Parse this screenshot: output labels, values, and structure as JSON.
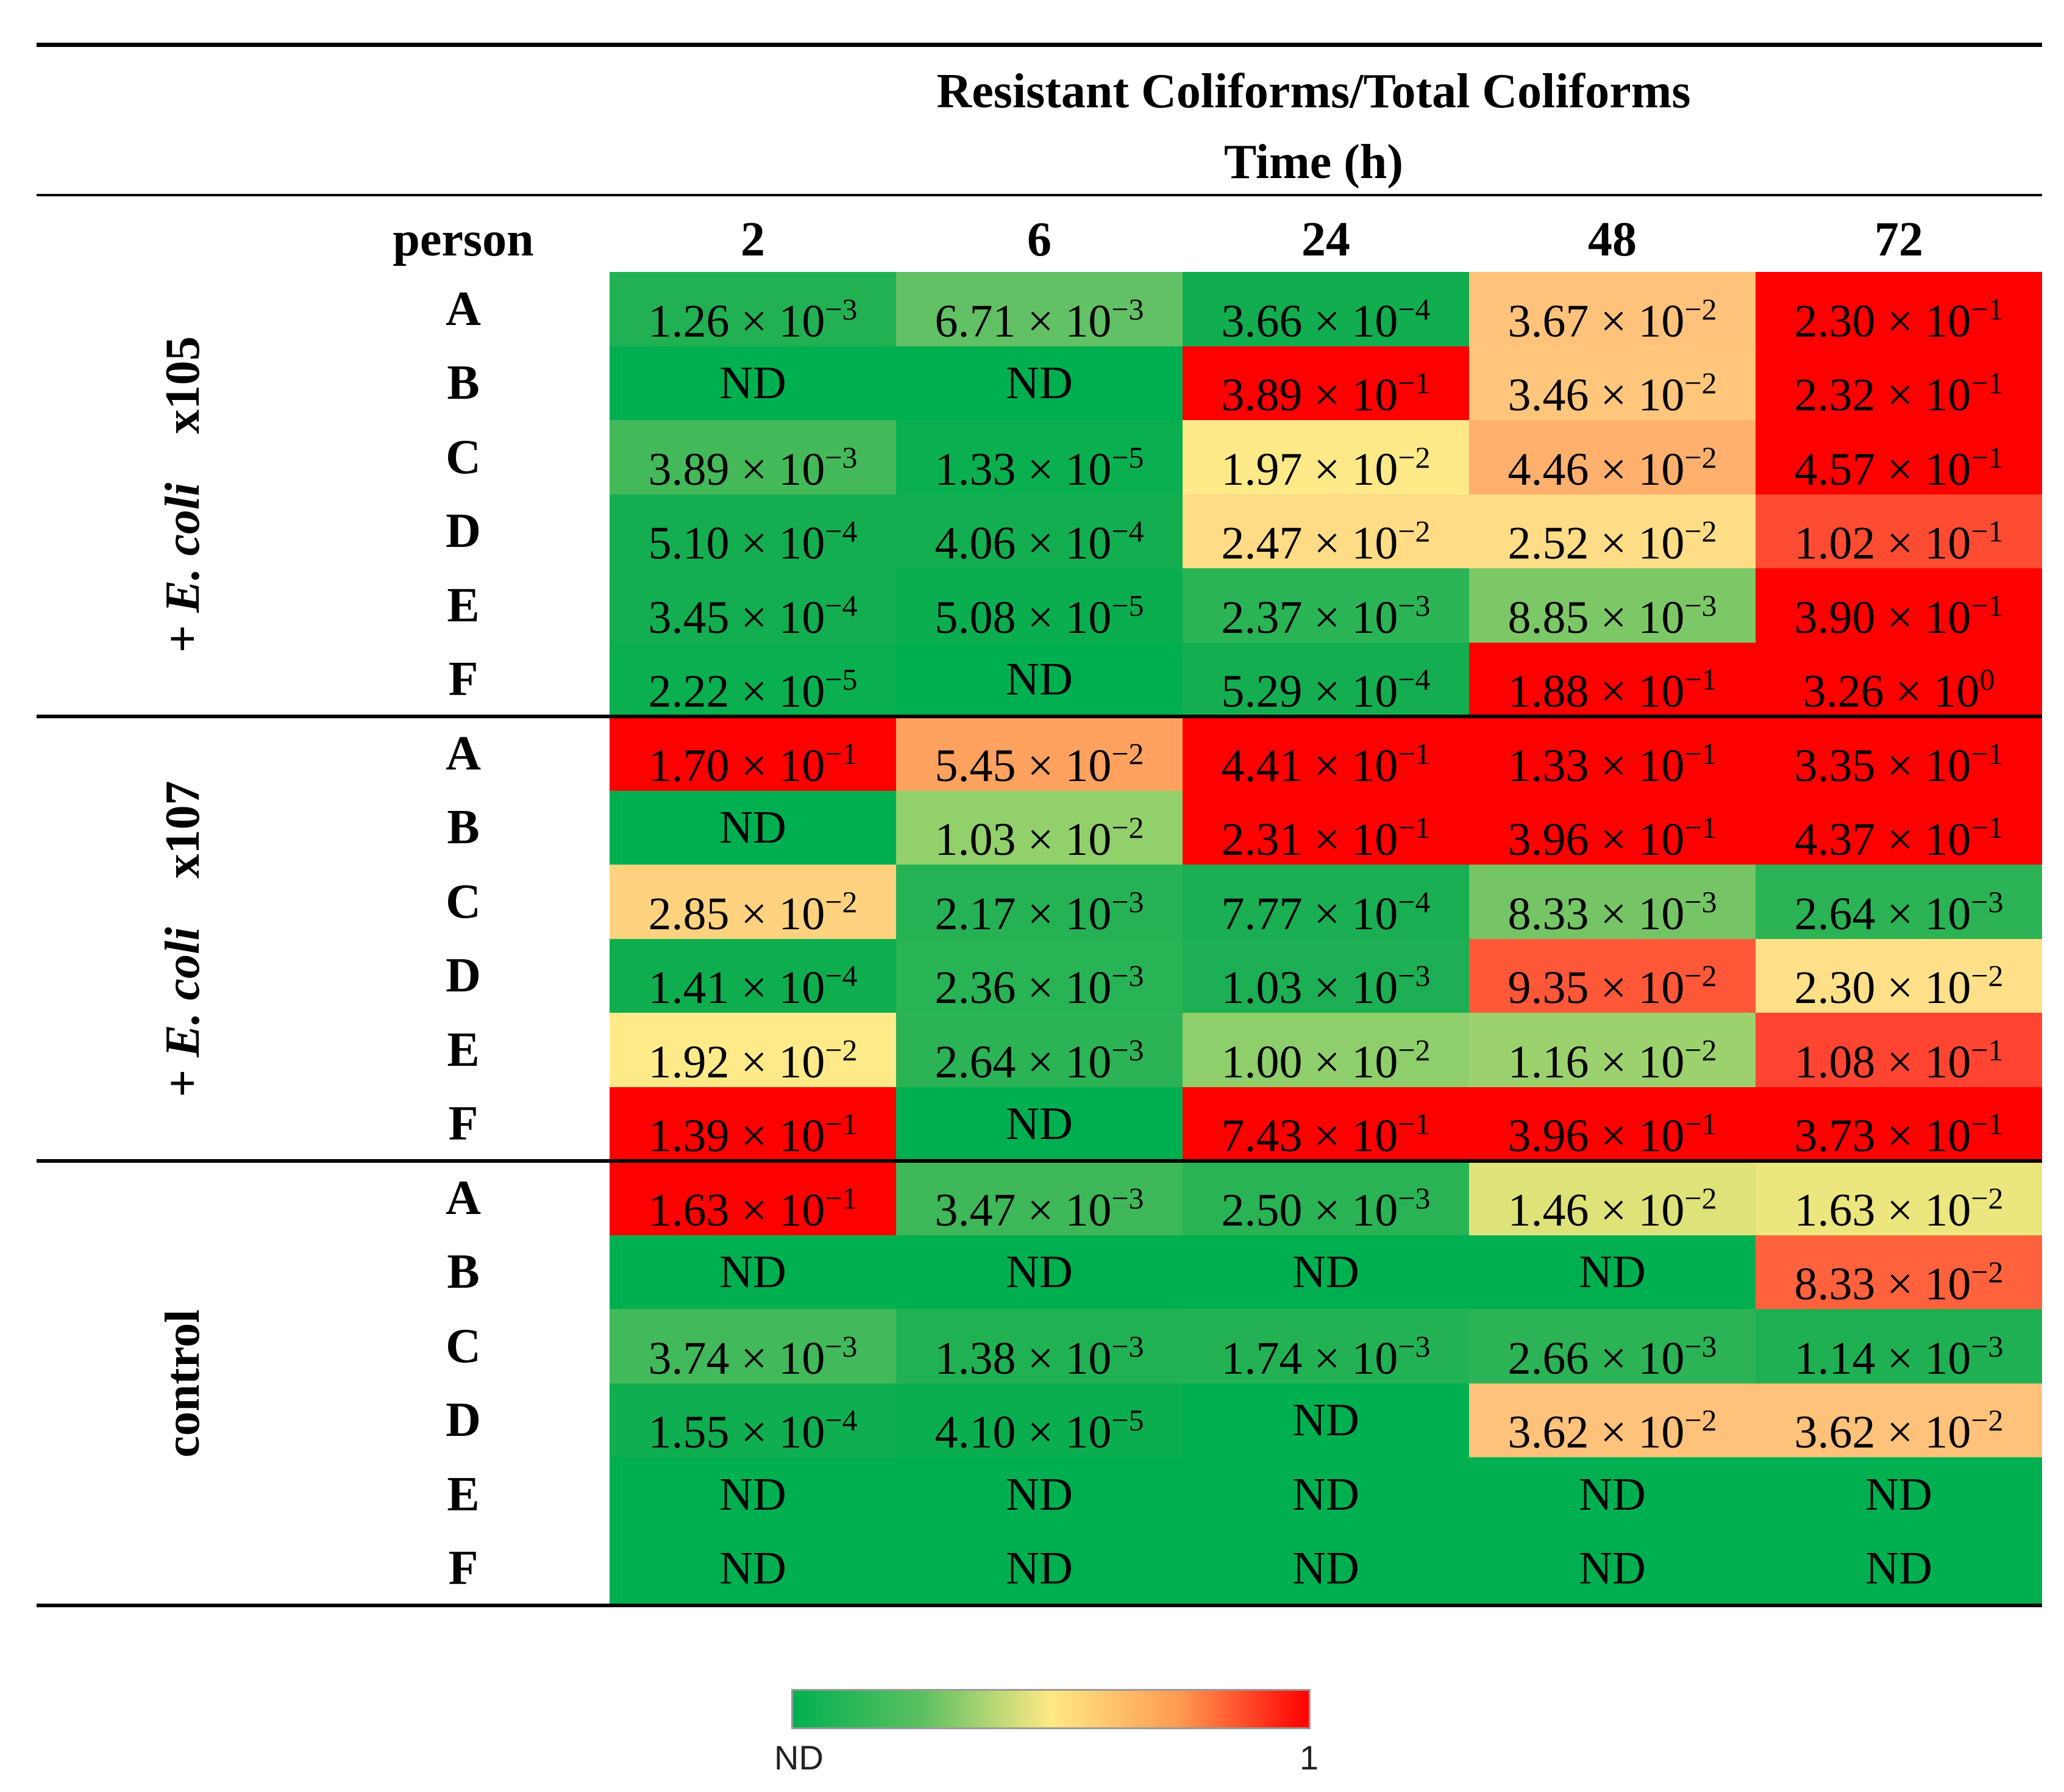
{
  "chart_data": {
    "type": "heatmap",
    "title": "Resistant Coliforms/Total Coliforms",
    "subtitle": "Time (h)",
    "row_header": "person",
    "columns": [
      "2",
      "6",
      "24",
      "48",
      "72"
    ],
    "groups": [
      {
        "label_prefix": "+ ",
        "label_italic": "E. coli",
        "label_suffix": "x105",
        "rows": [
          {
            "person": "A",
            "cells": [
              {
                "text": "1.26 × 10",
                "exp": "−3",
                "value": 0.00126,
                "color": "#21b153"
              },
              {
                "text": "6.71 × 10",
                "exp": "−3",
                "value": 0.00671,
                "color": "#62c165"
              },
              {
                "text": "3.66 × 10",
                "exp": "−4",
                "value": 0.000366,
                "color": "#11ad4f"
              },
              {
                "text": "3.67 × 10",
                "exp": "−2",
                "value": 0.0367,
                "color": "#ffc27a"
              },
              {
                "text": "2.30 × 10",
                "exp": "−1",
                "value": 0.23,
                "color": "#ff0000"
              }
            ]
          },
          {
            "person": "B",
            "cells": [
              {
                "text": "ND",
                "exp": "",
                "value": 0,
                "color": "#00b050"
              },
              {
                "text": "ND",
                "exp": "",
                "value": 0,
                "color": "#00b050"
              },
              {
                "text": "3.89 × 10",
                "exp": "−1",
                "value": 0.389,
                "color": "#ff0000"
              },
              {
                "text": "3.46 × 10",
                "exp": "−2",
                "value": 0.0346,
                "color": "#ffc67c"
              },
              {
                "text": "2.32 × 10",
                "exp": "−1",
                "value": 0.232,
                "color": "#ff0000"
              }
            ]
          },
          {
            "person": "C",
            "cells": [
              {
                "text": "3.89 × 10",
                "exp": "−3",
                "value": 0.00389,
                "color": "#44b95a"
              },
              {
                "text": "1.33 × 10",
                "exp": "−5",
                "value": 1.33e-05,
                "color": "#0ab04f"
              },
              {
                "text": "1.97 × 10",
                "exp": "−2",
                "value": 0.0197,
                "color": "#fee989"
              },
              {
                "text": "4.46 × 10",
                "exp": "−2",
                "value": 0.0446,
                "color": "#ffb06c"
              },
              {
                "text": "4.57 × 10",
                "exp": "−1",
                "value": 0.457,
                "color": "#ff0000"
              }
            ]
          },
          {
            "person": "D",
            "cells": [
              {
                "text": "5.10 × 10",
                "exp": "−4",
                "value": 0.00051,
                "color": "#14ae51"
              },
              {
                "text": "4.06 × 10",
                "exp": "−4",
                "value": 0.000406,
                "color": "#13ae50"
              },
              {
                "text": "2.47 × 10",
                "exp": "−2",
                "value": 0.0247,
                "color": "#ffdc85"
              },
              {
                "text": "2.52 × 10",
                "exp": "−2",
                "value": 0.0252,
                "color": "#ffdc86"
              },
              {
                "text": "1.02 × 10",
                "exp": "−1",
                "value": 0.102,
                "color": "#fe4c33"
              }
            ]
          },
          {
            "person": "E",
            "cells": [
              {
                "text": "3.45 × 10",
                "exp": "−4",
                "value": 0.000345,
                "color": "#12ae50"
              },
              {
                "text": "5.08 × 10",
                "exp": "−5",
                "value": 5.08e-05,
                "color": "#0bae4f"
              },
              {
                "text": "2.37 × 10",
                "exp": "−3",
                "value": 0.00237,
                "color": "#2ab456"
              },
              {
                "text": "8.85 × 10",
                "exp": "−3",
                "value": 0.00885,
                "color": "#7dc866"
              },
              {
                "text": "3.90 × 10",
                "exp": "−1",
                "value": 0.39,
                "color": "#ff0000"
              }
            ]
          },
          {
            "person": "F",
            "cells": [
              {
                "text": "2.22 × 10",
                "exp": "−5",
                "value": 2.22e-05,
                "color": "#0ab04f"
              },
              {
                "text": "ND",
                "exp": "",
                "value": 0,
                "color": "#00b050"
              },
              {
                "text": "5.29 × 10",
                "exp": "−4",
                "value": 0.000529,
                "color": "#14ae51"
              },
              {
                "text": "1.88 × 10",
                "exp": "−1",
                "value": 0.188,
                "color": "#ff0000"
              },
              {
                "text": "3.26 × 10",
                "exp": "0",
                "value": 3.26,
                "color": "#ff0000"
              }
            ]
          }
        ]
      },
      {
        "label_prefix": "+ ",
        "label_italic": "E. coli",
        "label_suffix": "x107",
        "rows": [
          {
            "person": "A",
            "cells": [
              {
                "text": "1.70 × 10",
                "exp": "−1",
                "value": 0.17,
                "color": "#ff0000"
              },
              {
                "text": "5.45 × 10",
                "exp": "−2",
                "value": 0.0545,
                "color": "#ffa25f"
              },
              {
                "text": "4.41 × 10",
                "exp": "−1",
                "value": 0.441,
                "color": "#ff0000"
              },
              {
                "text": "1.33 × 10",
                "exp": "−1",
                "value": 0.133,
                "color": "#ff0000"
              },
              {
                "text": "3.35 × 10",
                "exp": "−1",
                "value": 0.335,
                "color": "#ff0000"
              }
            ]
          },
          {
            "person": "B",
            "cells": [
              {
                "text": "ND",
                "exp": "",
                "value": 0,
                "color": "#00b050"
              },
              {
                "text": "1.03 × 10",
                "exp": "−2",
                "value": 0.0103,
                "color": "#92d06b"
              },
              {
                "text": "2.31 × 10",
                "exp": "−1",
                "value": 0.231,
                "color": "#ff0000"
              },
              {
                "text": "3.96 × 10",
                "exp": "−1",
                "value": 0.396,
                "color": "#ff0000"
              },
              {
                "text": "4.37 × 10",
                "exp": "−1",
                "value": 0.437,
                "color": "#ff0000"
              }
            ]
          },
          {
            "person": "C",
            "cells": [
              {
                "text": "2.85 × 10",
                "exp": "−2",
                "value": 0.0285,
                "color": "#ffd27f"
              },
              {
                "text": "2.17 × 10",
                "exp": "−3",
                "value": 0.00217,
                "color": "#25b254"
              },
              {
                "text": "7.77 × 10",
                "exp": "−4",
                "value": 0.000777,
                "color": "#1aaf52"
              },
              {
                "text": "8.33 × 10",
                "exp": "−3",
                "value": 0.00833,
                "color": "#75c566"
              },
              {
                "text": "2.64 × 10",
                "exp": "−3",
                "value": 0.00264,
                "color": "#2bb355"
              }
            ]
          },
          {
            "person": "D",
            "cells": [
              {
                "text": "1.41 × 10",
                "exp": "−4",
                "value": 0.000141,
                "color": "#0eae4f"
              },
              {
                "text": "2.36 × 10",
                "exp": "−3",
                "value": 0.00236,
                "color": "#28b355"
              },
              {
                "text": "1.03 × 10",
                "exp": "−3",
                "value": 0.00103,
                "color": "#1daf53"
              },
              {
                "text": "9.35 × 10",
                "exp": "−2",
                "value": 0.0935,
                "color": "#ff5838"
              },
              {
                "text": "2.30 × 10",
                "exp": "−2",
                "value": 0.023,
                "color": "#ffe088"
              }
            ]
          },
          {
            "person": "E",
            "cells": [
              {
                "text": "1.92 × 10",
                "exp": "−2",
                "value": 0.0192,
                "color": "#ffea8a"
              },
              {
                "text": "2.64 × 10",
                "exp": "−3",
                "value": 0.00264,
                "color": "#2bb355"
              },
              {
                "text": "1.00 × 10",
                "exp": "−2",
                "value": 0.01,
                "color": "#8ecf6b"
              },
              {
                "text": "1.16 × 10",
                "exp": "−2",
                "value": 0.0116,
                "color": "#9cd26e"
              },
              {
                "text": "1.08 × 10",
                "exp": "−1",
                "value": 0.108,
                "color": "#ff4531"
              }
            ]
          },
          {
            "person": "F",
            "cells": [
              {
                "text": "1.39 × 10",
                "exp": "−1",
                "value": 0.139,
                "color": "#ff0000"
              },
              {
                "text": "ND",
                "exp": "",
                "value": 0,
                "color": "#00b050"
              },
              {
                "text": "7.43 × 10",
                "exp": "−1",
                "value": 0.743,
                "color": "#ff0000"
              },
              {
                "text": "3.96 × 10",
                "exp": "−1",
                "value": 0.396,
                "color": "#ff0000"
              },
              {
                "text": "3.73 × 10",
                "exp": "−1",
                "value": 0.373,
                "color": "#ff0000"
              }
            ]
          }
        ]
      },
      {
        "label_prefix": "",
        "label_italic": "",
        "label_suffix": "control",
        "rows": [
          {
            "person": "A",
            "cells": [
              {
                "text": "1.63 × 10",
                "exp": "−1",
                "value": 0.163,
                "color": "#ff0000"
              },
              {
                "text": "3.47 × 10",
                "exp": "−3",
                "value": 0.00347,
                "color": "#3eb859"
              },
              {
                "text": "2.50 × 10",
                "exp": "−3",
                "value": 0.0025,
                "color": "#2ab355"
              },
              {
                "text": "1.46 × 10",
                "exp": "−2",
                "value": 0.0146,
                "color": "#dde379"
              },
              {
                "text": "1.63 × 10",
                "exp": "−2",
                "value": 0.0163,
                "color": "#ebe67d"
              }
            ]
          },
          {
            "person": "B",
            "cells": [
              {
                "text": "ND",
                "exp": "",
                "value": 0,
                "color": "#00b050"
              },
              {
                "text": "ND",
                "exp": "",
                "value": 0,
                "color": "#00b050"
              },
              {
                "text": "ND",
                "exp": "",
                "value": 0,
                "color": "#00b050"
              },
              {
                "text": "ND",
                "exp": "",
                "value": 0,
                "color": "#00b050"
              },
              {
                "text": "8.33 × 10",
                "exp": "−2",
                "value": 0.0833,
                "color": "#ff623c"
              }
            ]
          },
          {
            "person": "C",
            "cells": [
              {
                "text": "3.74 × 10",
                "exp": "−3",
                "value": 0.00374,
                "color": "#42b95a"
              },
              {
                "text": "1.38 × 10",
                "exp": "−3",
                "value": 0.00138,
                "color": "#20b153"
              },
              {
                "text": "1.74 × 10",
                "exp": "−3",
                "value": 0.00174,
                "color": "#22b254"
              },
              {
                "text": "2.66 × 10",
                "exp": "−3",
                "value": 0.00266,
                "color": "#2bb355"
              },
              {
                "text": "1.14 × 10",
                "exp": "−3",
                "value": 0.00114,
                "color": "#1eb053"
              }
            ]
          },
          {
            "person": "D",
            "cells": [
              {
                "text": "1.55 × 10",
                "exp": "−4",
                "value": 0.000155,
                "color": "#0fae50"
              },
              {
                "text": "4.10 × 10",
                "exp": "−5",
                "value": 4.1e-05,
                "color": "#0bae4f"
              },
              {
                "text": "ND",
                "exp": "",
                "value": 0,
                "color": "#00b050"
              },
              {
                "text": "3.62 × 10",
                "exp": "−2",
                "value": 0.0362,
                "color": "#ffc27a"
              },
              {
                "text": "3.62 × 10",
                "exp": "−2",
                "value": 0.0362,
                "color": "#ffc27a"
              }
            ]
          },
          {
            "person": "E",
            "cells": [
              {
                "text": "ND",
                "exp": "",
                "value": 0,
                "color": "#00b050"
              },
              {
                "text": "ND",
                "exp": "",
                "value": 0,
                "color": "#00b050"
              },
              {
                "text": "ND",
                "exp": "",
                "value": 0,
                "color": "#00b050"
              },
              {
                "text": "ND",
                "exp": "",
                "value": 0,
                "color": "#00b050"
              },
              {
                "text": "ND",
                "exp": "",
                "value": 0,
                "color": "#00b050"
              }
            ]
          },
          {
            "person": "F",
            "cells": [
              {
                "text": "ND",
                "exp": "",
                "value": 0,
                "color": "#00b050"
              },
              {
                "text": "ND",
                "exp": "",
                "value": 0,
                "color": "#00b050"
              },
              {
                "text": "ND",
                "exp": "",
                "value": 0,
                "color": "#00b050"
              },
              {
                "text": "ND",
                "exp": "",
                "value": 0,
                "color": "#00b050"
              },
              {
                "text": "ND",
                "exp": "",
                "value": 0,
                "color": "#00b050"
              }
            ]
          }
        ]
      }
    ],
    "legend": {
      "min_label": "ND",
      "max_label": "1",
      "colors": [
        "#00b050",
        "#ffe985",
        "#ff0000"
      ]
    }
  }
}
